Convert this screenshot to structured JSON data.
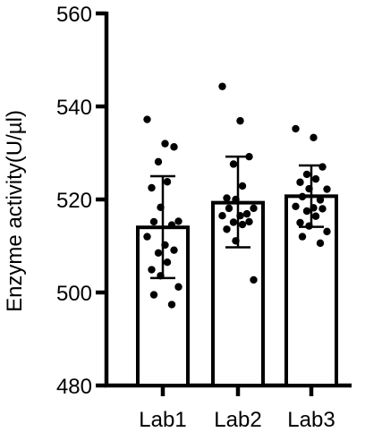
{
  "chart_data": {
    "type": "bar",
    "title": "",
    "xlabel": "",
    "ylabel": "Enzyme activity(U/µl)",
    "ylim": [
      480,
      560
    ],
    "yticks": [
      480,
      500,
      520,
      540,
      560
    ],
    "grid": false,
    "legend": "none",
    "categories": [
      "Lab1",
      "Lab2",
      "Lab3"
    ],
    "values": [
      514,
      519.3,
      520.7
    ],
    "error_bars": [
      {
        "lower": 503.1,
        "upper": 525
      },
      {
        "lower": 509.7,
        "upper": 529.2
      },
      {
        "lower": 514.1,
        "upper": 527.3
      }
    ],
    "points": [
      [
        537.2,
        532,
        531.3,
        528.1,
        523.8,
        522.5,
        518.3,
        515.3,
        515.2,
        514.5,
        512,
        510.2,
        509.1,
        508.5,
        506.5,
        504.9,
        503.6,
        501.2,
        499.5,
        497.4
      ],
      [
        544.3,
        536.9,
        529.2,
        527.6,
        522.9,
        520.3,
        520,
        518.1,
        518.1,
        516.9,
        516.5,
        516.5,
        515.2,
        515.1,
        514.6,
        513.6,
        511.1,
        502.7
      ],
      [
        535.2,
        533.3,
        527,
        525.4,
        524.4,
        523.7,
        522.3,
        522.2,
        520.6,
        519.9,
        518.5,
        518.2,
        518,
        517.5,
        516.4,
        515,
        514.3,
        513.1,
        512,
        510.6
      ]
    ],
    "colors": {
      "bar_fill": "#ffffff",
      "stroke": "#000000",
      "points": "#000000"
    }
  }
}
